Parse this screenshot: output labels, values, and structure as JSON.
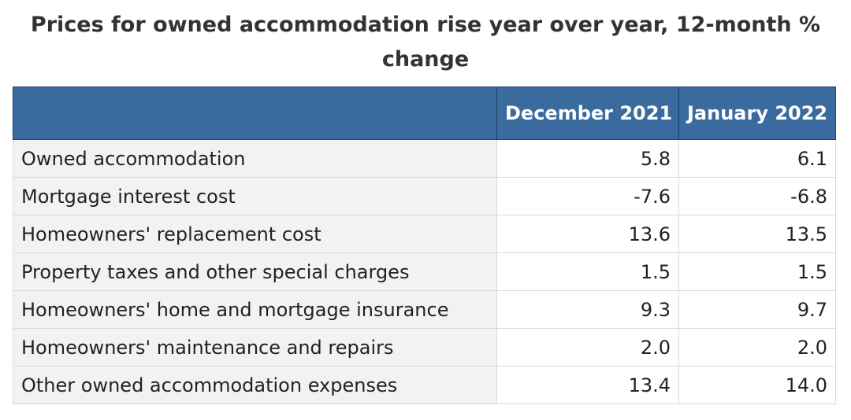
{
  "chart_data": {
    "type": "table",
    "title": "Prices for owned accommodation rise year over year, 12-month % change",
    "columns": [
      "",
      "December 2021",
      "January 2022"
    ],
    "rows": [
      {
        "label": "Owned accommodation",
        "values": [
          "5.8",
          "6.1"
        ]
      },
      {
        "label": "Mortgage interest cost",
        "values": [
          "-7.6",
          "-6.8"
        ]
      },
      {
        "label": "Homeowners' replacement cost",
        "values": [
          "13.6",
          "13.5"
        ]
      },
      {
        "label": "Property taxes and other special charges",
        "values": [
          "1.5",
          "1.5"
        ]
      },
      {
        "label": "Homeowners' home and mortgage insurance",
        "values": [
          "9.3",
          "9.7"
        ]
      },
      {
        "label": "Homeowners' maintenance and repairs",
        "values": [
          "2.0",
          "2.0"
        ]
      },
      {
        "label": "Other owned accommodation expenses",
        "values": [
          "13.4",
          "14.0"
        ]
      }
    ]
  },
  "colors": {
    "header_bg": "#3a6b9e",
    "header_text": "#ffffff",
    "label_bg": "#f2f2f2"
  }
}
